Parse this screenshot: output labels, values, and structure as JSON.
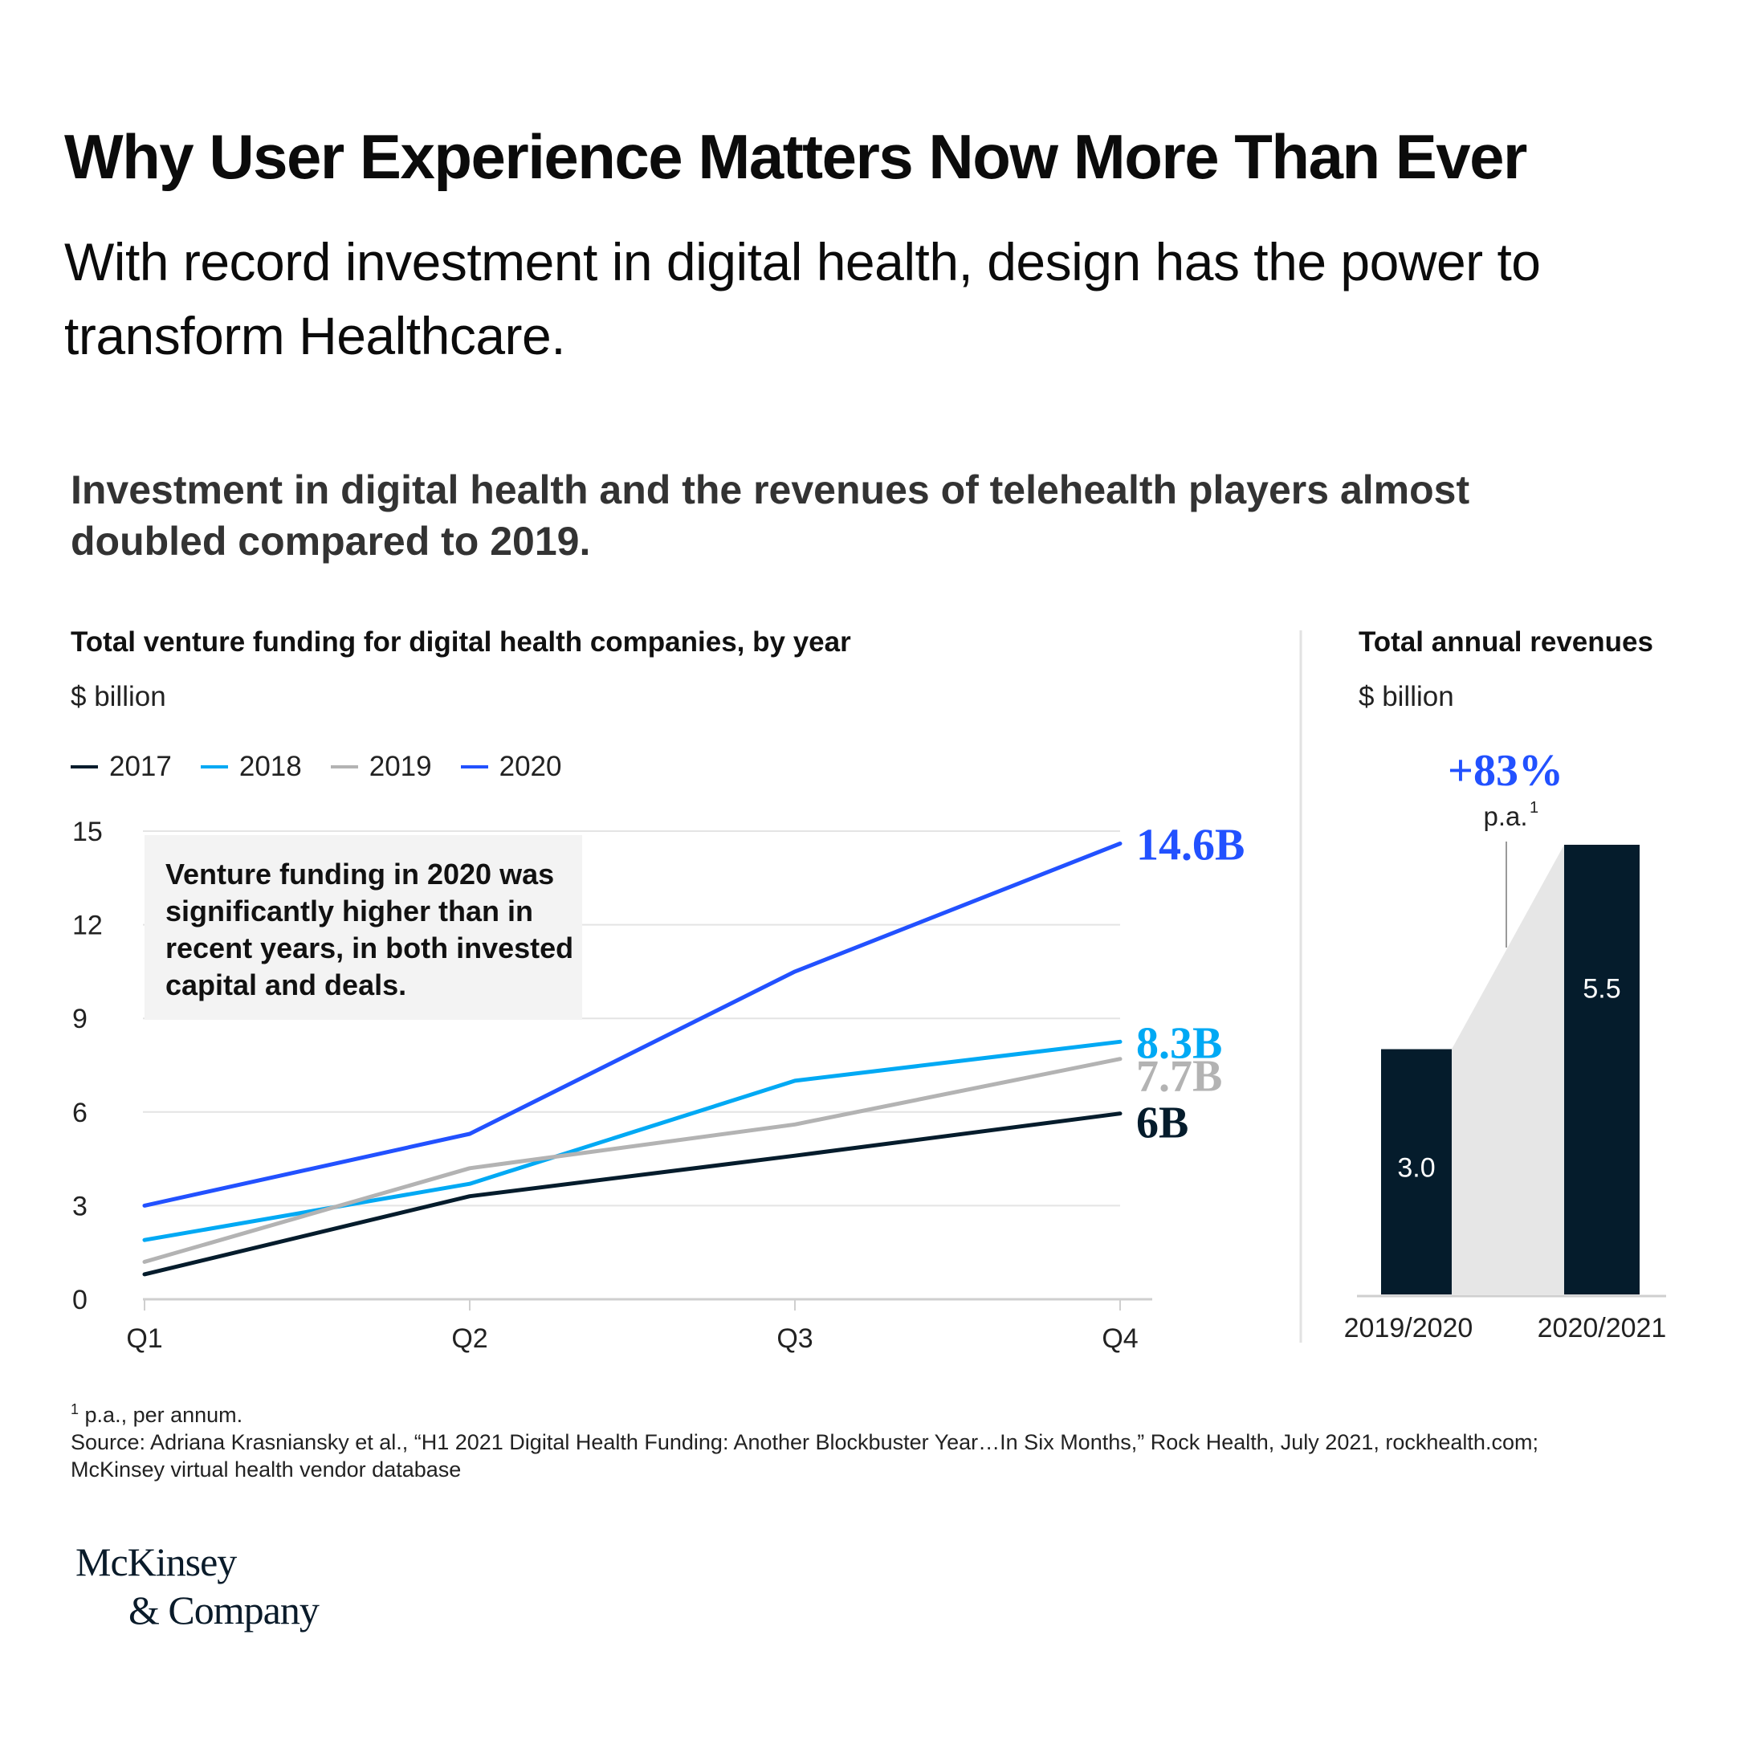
{
  "headline": "Why User Experience Matters Now More Than Ever",
  "subheadline": "With record investment in digital health, design has the power to transform Healthcare.",
  "chart_heading": "Investment in digital health and the revenues of telehealth players almost doubled compared to 2019.",
  "colors": {
    "2017": "#051c2c",
    "2018": "#00a9f4",
    "2019": "#b3b3b3",
    "2020": "#2251ff",
    "bar": "#051c2c",
    "connector": "#e6e6e6"
  },
  "annotation": "Venture funding in 2020 was significantly higher than in recent years, in both invested capital and deals.",
  "growth": {
    "value": "+83%",
    "sub": "p.a.",
    "sup": "1"
  },
  "footnotes": {
    "sup": "1",
    "line1": "p.a., per annum.",
    "line2": "Source: Adriana Krasniansky et al., “H1 2021 Digital Health Funding: Another Blockbuster Year…In Six Months,” Rock Health, July 2021, rockhealth.com;",
    "line3": "McKinsey virtual health vendor database"
  },
  "logo": {
    "line1": "McKinsey",
    "line2": "& Company"
  },
  "chart_data": [
    {
      "type": "line",
      "title": "Total venture funding for digital health companies, by year",
      "unit": "$ billion",
      "categories": [
        "Q1",
        "Q2",
        "Q3",
        "Q4"
      ],
      "ylim": [
        0,
        15
      ],
      "yticks": [
        0,
        3,
        6,
        9,
        12,
        15
      ],
      "series": [
        {
          "name": "2017",
          "values": [
            0.8,
            3.3,
            4.6,
            5.95
          ],
          "end_label": "6B"
        },
        {
          "name": "2018",
          "values": [
            1.9,
            3.7,
            7.0,
            8.25
          ],
          "end_label": "8.3B"
        },
        {
          "name": "2019",
          "values": [
            1.2,
            4.2,
            5.6,
            7.7
          ],
          "end_label": "7.7B"
        },
        {
          "name": "2020",
          "values": [
            3.0,
            5.3,
            10.5,
            14.6
          ],
          "end_label": "14.6B"
        }
      ],
      "grid": true,
      "legend": "top-left"
    },
    {
      "type": "bar",
      "title": "Total annual revenues",
      "unit": "$ billion",
      "categories": [
        "2019/2020",
        "2020/2021"
      ],
      "values": [
        3.0,
        5.5
      ],
      "value_labels": [
        "3.0",
        "5.5"
      ]
    }
  ]
}
